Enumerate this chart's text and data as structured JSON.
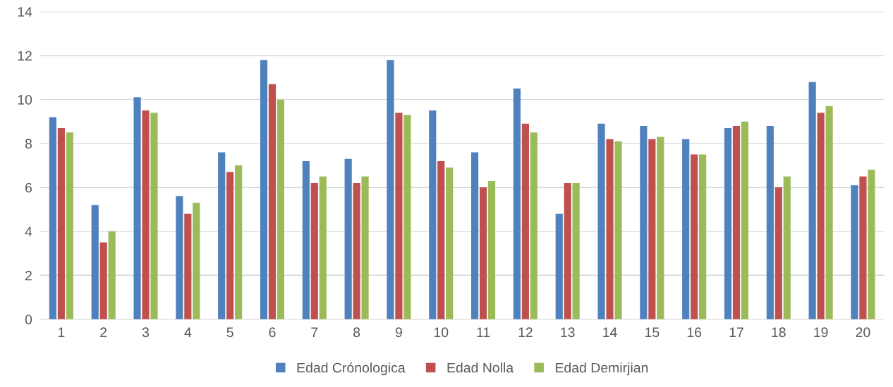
{
  "chart_data": {
    "type": "bar",
    "categories": [
      "1",
      "2",
      "3",
      "4",
      "5",
      "6",
      "7",
      "8",
      "9",
      "10",
      "11",
      "12",
      "13",
      "14",
      "15",
      "16",
      "17",
      "18",
      "19",
      "20"
    ],
    "series": [
      {
        "name": "Edad Crónologica",
        "color": "#4f81bd",
        "values": [
          9.2,
          5.2,
          10.1,
          5.6,
          7.6,
          11.8,
          7.2,
          7.3,
          11.8,
          9.5,
          7.6,
          10.5,
          4.8,
          8.9,
          8.8,
          8.2,
          8.7,
          8.8,
          10.8,
          6.1
        ]
      },
      {
        "name": "Edad Nolla",
        "color": "#c0504d",
        "values": [
          8.7,
          3.5,
          9.5,
          4.8,
          6.7,
          10.7,
          6.2,
          6.2,
          9.4,
          7.2,
          6.0,
          8.9,
          6.2,
          8.2,
          8.2,
          7.5,
          8.8,
          6.0,
          9.4,
          6.5
        ]
      },
      {
        "name": "Edad Demirjian",
        "color": "#9bbb59",
        "values": [
          8.5,
          4.0,
          9.4,
          5.3,
          7.0,
          10.0,
          6.5,
          6.5,
          9.3,
          6.9,
          6.3,
          8.5,
          6.2,
          8.1,
          8.3,
          7.5,
          9.0,
          6.5,
          9.7,
          6.8
        ]
      }
    ],
    "ylim": [
      0,
      14
    ],
    "yticks": [
      0,
      2,
      4,
      6,
      8,
      10,
      12,
      14
    ],
    "grid": "y",
    "legend": "bottom"
  }
}
